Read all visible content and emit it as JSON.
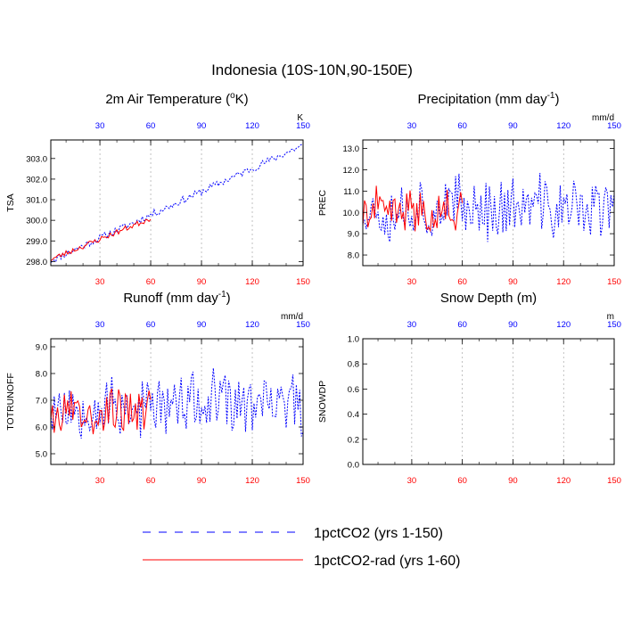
{
  "figure": {
    "title": "Indonesia (10S-10N,90-150E)",
    "legend": [
      {
        "label": "1pctCO2 (yrs 1-150)",
        "color": "#0000ff",
        "dash": true
      },
      {
        "label": "1pctCO2-rad (yrs 1-60)",
        "color": "#ff0000",
        "dash": false
      }
    ],
    "top_tick_color": "#0000ff",
    "bottom_tick_color": "#ff0000"
  },
  "chart_data": [
    {
      "type": "line",
      "title": "2m Air Temperature (",
      "title_sup": "o",
      "title_tail": "K)",
      "ylabel": "TSA",
      "units": "K",
      "xlim": [
        1,
        150
      ],
      "ylim": [
        297.8,
        303.9
      ],
      "yticks": [
        "298.0",
        "299.0",
        "300.0",
        "301.0",
        "302.0",
        "303.0"
      ],
      "ytick_values": [
        298,
        299,
        300,
        301,
        302,
        303
      ],
      "xticks": [
        "30",
        "60",
        "90",
        "120",
        "150"
      ],
      "xtick_values": [
        30,
        60,
        90,
        120,
        150
      ],
      "grid": "vertical-dashed",
      "series": [
        {
          "name": "1pctCO2 (yrs 1-150)",
          "color": "#0000ff",
          "dash": true,
          "gen": {
            "kind": "trend",
            "start": 298.05,
            "end": 303.65,
            "amp": 0.18,
            "seed": 11,
            "n": 150
          }
        },
        {
          "name": "1pctCO2-rad (yrs 1-60)",
          "color": "#ff0000",
          "dash": false,
          "gen": {
            "kind": "trend",
            "start": 298.1,
            "end": 300.1,
            "amp": 0.14,
            "seed": 23,
            "n": 60
          }
        }
      ]
    },
    {
      "type": "line",
      "title": "Precipitation (mm day",
      "title_sup": "-1",
      "title_tail": ")",
      "ylabel": "PREC",
      "units": "mm/d",
      "xlim": [
        1,
        150
      ],
      "ylim": [
        7.5,
        13.4
      ],
      "yticks": [
        "8.0",
        "9.0",
        "10.0",
        "11.0",
        "12.0",
        "13.0"
      ],
      "ytick_values": [
        8,
        9,
        10,
        11,
        12,
        13
      ],
      "xticks": [
        "30",
        "60",
        "90",
        "120",
        "150"
      ],
      "xtick_values": [
        30,
        60,
        90,
        120,
        150
      ],
      "grid": "vertical-dashed",
      "series": [
        {
          "name": "1pctCO2 (yrs 1-150)",
          "color": "#0000ff",
          "dash": true,
          "gen": {
            "kind": "noise",
            "mean": 10.2,
            "amp": 2.6,
            "min": 7.7,
            "max": 13.1,
            "seed": 37,
            "n": 150
          }
        },
        {
          "name": "1pctCO2-rad (yrs 1-60)",
          "color": "#ff0000",
          "dash": false,
          "gen": {
            "kind": "noise",
            "mean": 10.0,
            "amp": 1.9,
            "min": 8.2,
            "max": 11.9,
            "seed": 41,
            "n": 60
          }
        }
      ]
    },
    {
      "type": "line",
      "title": "Runoff (mm day",
      "title_sup": "-1",
      "title_tail": ")",
      "ylabel": "TOTRUNOFF",
      "units": "mm/d",
      "xlim": [
        1,
        150
      ],
      "ylim": [
        4.6,
        9.3
      ],
      "yticks": [
        "5.0",
        "6.0",
        "7.0",
        "8.0",
        "9.0"
      ],
      "ytick_values": [
        5,
        6,
        7,
        8,
        9
      ],
      "xticks": [
        "30",
        "60",
        "90",
        "120",
        "150"
      ],
      "xtick_values": [
        30,
        60,
        90,
        120,
        150
      ],
      "grid": "vertical-dashed",
      "series": [
        {
          "name": "1pctCO2 (yrs 1-150)",
          "color": "#0000ff",
          "dash": true,
          "gen": {
            "kind": "noise",
            "mean": 6.8,
            "amp": 2.1,
            "min": 4.7,
            "max": 8.9,
            "seed": 53,
            "n": 150
          }
        },
        {
          "name": "1pctCO2-rad (yrs 1-60)",
          "color": "#ff0000",
          "dash": false,
          "gen": {
            "kind": "noise",
            "mean": 6.6,
            "amp": 1.5,
            "min": 5.3,
            "max": 8.0,
            "seed": 67,
            "n": 60
          }
        }
      ]
    },
    {
      "type": "line",
      "title": "Snow Depth (m)",
      "title_sup": "",
      "title_tail": "",
      "ylabel": "SNOWDP",
      "units": "m",
      "xlim": [
        1,
        150
      ],
      "ylim": [
        0,
        1
      ],
      "yticks": [
        "0.0",
        "0.2",
        "0.4",
        "0.6",
        "0.8",
        "1.0"
      ],
      "ytick_values": [
        0,
        0.2,
        0.4,
        0.6,
        0.8,
        1.0
      ],
      "xticks": [
        "30",
        "60",
        "90",
        "120",
        "150"
      ],
      "xtick_values": [
        30,
        60,
        90,
        120,
        150
      ],
      "grid": "vertical-dashed",
      "series": [
        {
          "name": "1pctCO2 (yrs 1-150)",
          "color": "#0000ff",
          "dash": true,
          "gen": {
            "kind": "const",
            "value": 0,
            "n": 150
          }
        },
        {
          "name": "1pctCO2-rad (yrs 1-60)",
          "color": "#ff0000",
          "dash": false,
          "gen": {
            "kind": "const",
            "value": 0,
            "n": 60
          }
        }
      ]
    }
  ]
}
